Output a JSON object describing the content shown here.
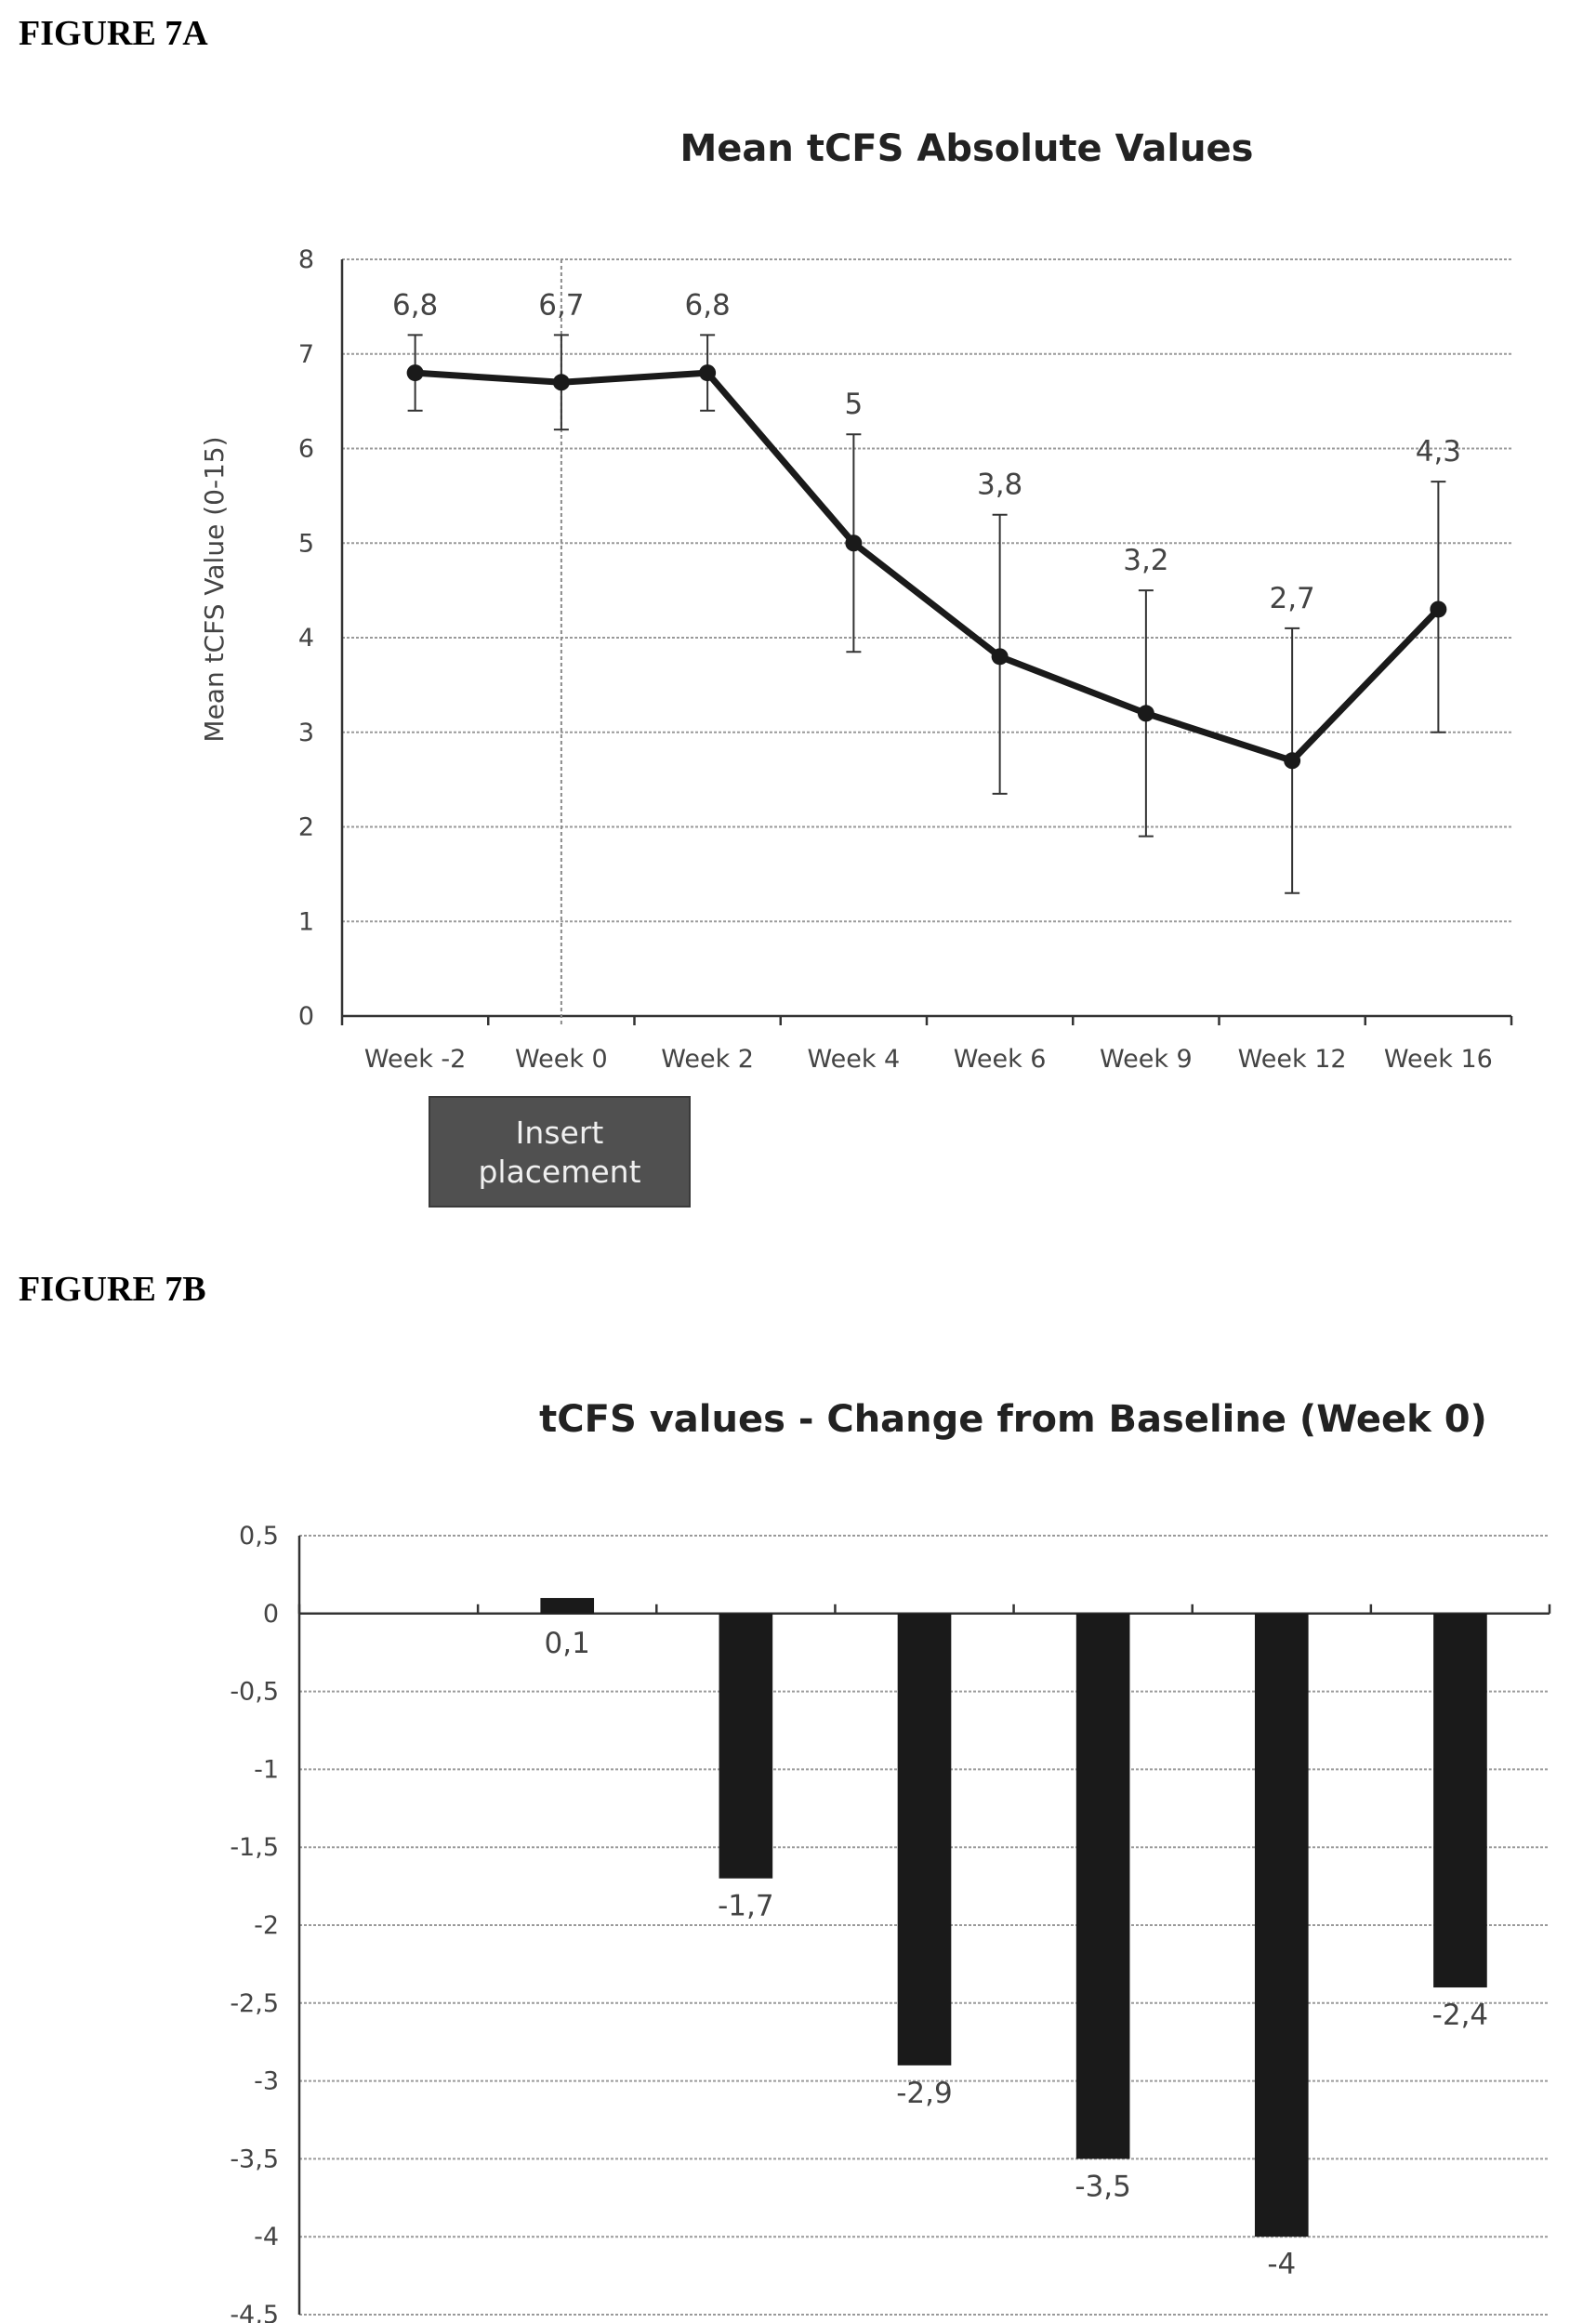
{
  "figure_a_label": "FIGURE 7A",
  "figure_b_label": "FIGURE 7B",
  "chart_data": [
    {
      "type": "line",
      "title": "Mean tCFS Absolute Values",
      "xlabel": "",
      "ylabel": "Mean tCFS Value (0-15)",
      "categories": [
        "Week -2",
        "Week 0",
        "Week 2",
        "Week 4",
        "Week 6",
        "Week 9",
        "Week 12",
        "Week 16"
      ],
      "values": [
        6.8,
        6.7,
        6.8,
        5,
        3.8,
        3.2,
        2.7,
        4.3
      ],
      "labels": [
        "6,8",
        "6,7",
        "6,8",
        "5",
        "3,8",
        "3,2",
        "2,7",
        "4,3"
      ],
      "error_low": [
        6.4,
        6.2,
        6.4,
        3.85,
        2.35,
        1.9,
        1.3,
        3.0
      ],
      "error_high": [
        7.2,
        7.2,
        7.2,
        6.15,
        5.3,
        4.5,
        4.1,
        5.65
      ],
      "yticks": [
        "0",
        "1",
        "2",
        "3",
        "4",
        "5",
        "6",
        "7",
        "8"
      ],
      "ylim": [
        0,
        8
      ],
      "grid": true,
      "marker_line_at": "Week 0",
      "annotation": "Insert placement",
      "colors": {
        "line": "#1a1a1a",
        "annotation_box": "#505050"
      }
    },
    {
      "type": "bar",
      "title": "tCFS values - Change from Baseline (Week 0)",
      "xlabel": "",
      "ylabel": "",
      "categories": [
        "",
        "",
        "",
        "",
        "",
        "",
        ""
      ],
      "values": [
        0,
        0.1,
        -1.7,
        -2.9,
        -3.5,
        -4,
        -2.4
      ],
      "labels": [
        "",
        "0,1",
        "-1,7",
        "-2,9",
        "-3,5",
        "-4",
        "-2,4"
      ],
      "yticks": [
        "0,5",
        "0",
        "-0,5",
        "-1",
        "-1,5",
        "-2",
        "-2,5",
        "-3",
        "-3,5",
        "-4",
        "-4,5"
      ],
      "ylim": [
        -4.5,
        0.5
      ],
      "grid": true,
      "colors": {
        "bar": "#1a1a1a"
      }
    }
  ]
}
